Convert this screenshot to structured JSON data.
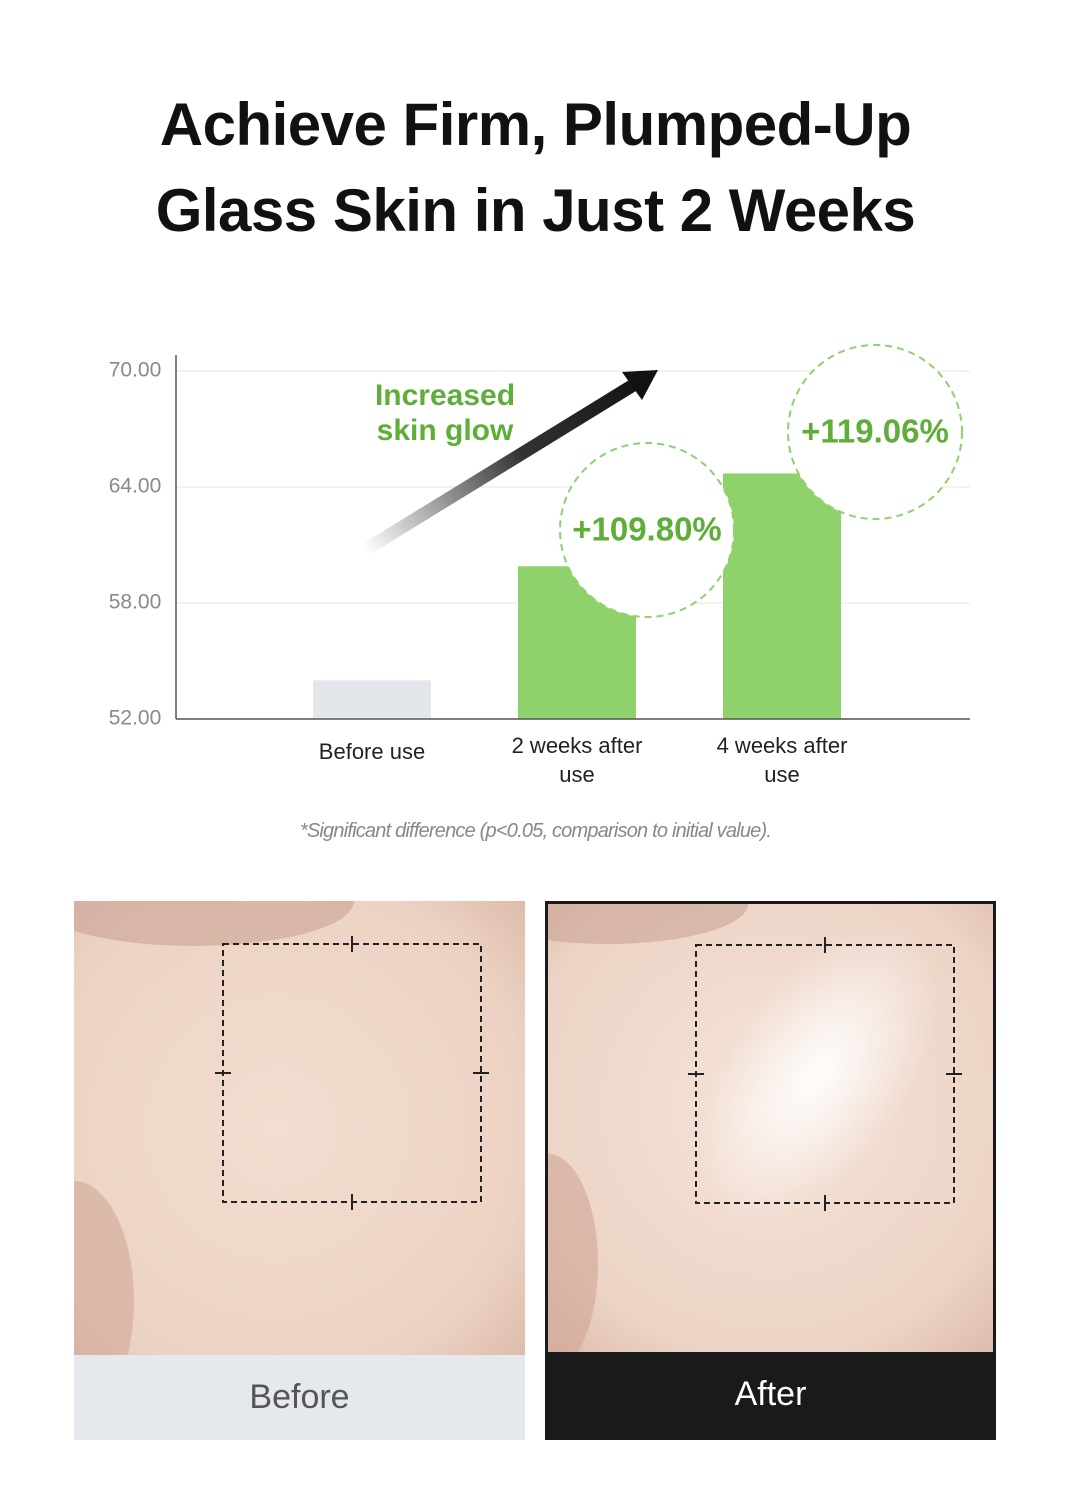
{
  "chart_data": {
    "type": "bar",
    "title": "Achieve Firm, Plumped-Up Glass Skin in Just 2 Weeks",
    "categories": [
      "Before use",
      "2 weeks after use",
      "4 weeks after use"
    ],
    "values": [
      54.0,
      59.9,
      64.7
    ],
    "colors": [
      "#e3e7ec",
      "#8fd16a",
      "#8fd16a"
    ],
    "ylim": [
      52,
      70
    ],
    "yticks": [
      {
        "value": 52,
        "label": "52.00"
      },
      {
        "value": 58,
        "label": "58.00"
      },
      {
        "value": 64,
        "label": "64.00"
      },
      {
        "value": 70,
        "label": "70.00"
      }
    ],
    "grid": true,
    "annotation": "Increased skin glow",
    "bar_annotations": [
      "+109.80%",
      "+119.06%"
    ],
    "footnote": "*Significant difference (p<0.05, comparison to initial value)."
  },
  "photos": [
    {
      "label": "Before"
    },
    {
      "label": "After"
    }
  ]
}
